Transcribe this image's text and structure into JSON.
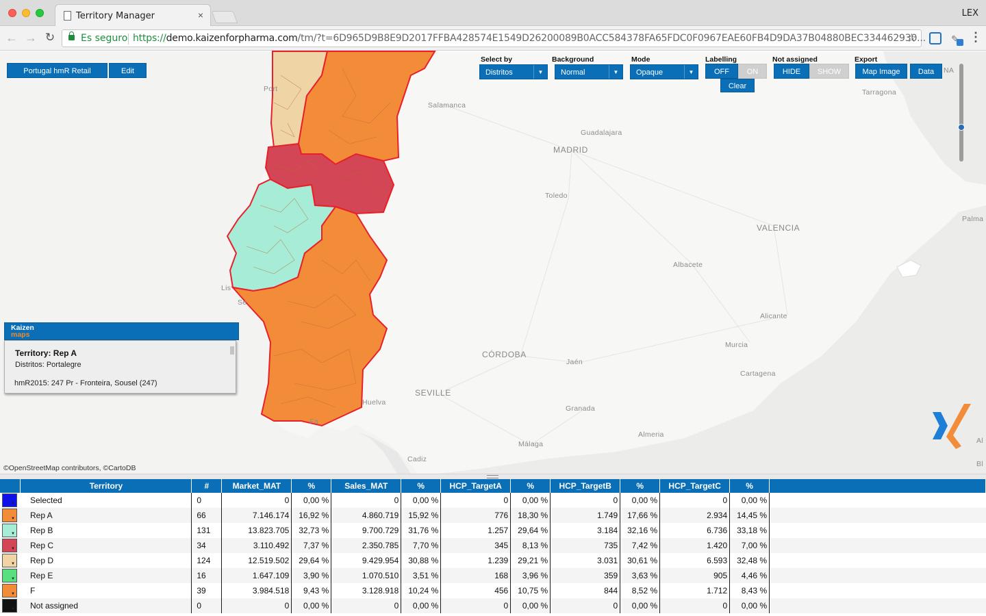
{
  "browser": {
    "tab_title": "Territory Manager",
    "tab_close": "×",
    "profile": "LEX",
    "secure_label": "Es seguro",
    "url_scheme": "https://",
    "url_host": "demo.kaizenforpharma.com",
    "url_path": "/tm/?t=6D965D9B8E9D2017FFBA428574E1549D26200089B0ACC584378FA65FDC0F0967EAE60FB4D9DA37B04880BEC334462930...",
    "icons": [
      "back-arrow-icon",
      "forward-arrow-icon",
      "reload-icon",
      "lock-icon",
      "star-icon",
      "extension-icon",
      "menu-icon"
    ]
  },
  "map_controls": {
    "territory_button": "Portugal hmR Retail",
    "edit_button": "Edit",
    "select_by": {
      "label": "Select by",
      "value": "Distritos"
    },
    "background": {
      "label": "Background",
      "value": "Normal"
    },
    "mode": {
      "label": "Mode",
      "value": "Opaque"
    },
    "labelling": {
      "label": "Labelling",
      "off": "OFF",
      "on": "ON",
      "active": "OFF"
    },
    "clear_button": "Clear",
    "not_assigned": {
      "label": "Not assigned",
      "hide": "HIDE",
      "show": "SHOW",
      "active": "HIDE"
    },
    "export": {
      "label": "Export",
      "map_image": "Map Image",
      "data": "Data"
    },
    "zoom_level": 0.66
  },
  "map": {
    "attribution": "©OpenStreetMap contributors, ©CartoDB",
    "cities": [
      "Salamanca",
      "Guadalajara",
      "MADRID",
      "Toledo",
      "VALENCIA",
      "Albacete",
      "Alicante",
      "Murcia",
      "Cartagena",
      "CÓRDOBA",
      "Jaén",
      "SEVILLE",
      "Huelva",
      "Granada",
      "Almeria",
      "Málaga",
      "Cadiz",
      "Tarragona",
      "Palma",
      "Port",
      "Lis",
      "Se",
      "Fa",
      "NA",
      "Al",
      "Bl"
    ]
  },
  "info_panel": {
    "logo_top": "Kaizen",
    "logo_bottom": "maps",
    "title": "Territory: Rep A",
    "subtitle": "Distritos: Portalegre",
    "detail": "hmR2015: 247 Pr - Fronteira, Sousel (247)"
  },
  "table": {
    "headers": [
      "Territory",
      "#",
      "Market_MAT",
      "%",
      "Sales_MAT",
      "%",
      "HCP_TargetA",
      "%",
      "HCP_TargetB",
      "%",
      "HCP_TargetC",
      "%"
    ],
    "rows": [
      {
        "color": "#1010e8",
        "name": "Selected",
        "count": "0",
        "market": "0",
        "market_pct": "0,00 %",
        "sales": "0",
        "sales_pct": "0,00 %",
        "ta": "0",
        "ta_pct": "0,00 %",
        "tb": "0",
        "tb_pct": "0,00 %",
        "tc": "0",
        "tc_pct": "0,00 %"
      },
      {
        "color": "#f28c38",
        "name": "Rep A",
        "count": "66",
        "market": "7.146.174",
        "market_pct": "16,92 %",
        "sales": "4.860.719",
        "sales_pct": "15,92 %",
        "ta": "776",
        "ta_pct": "18,30 %",
        "tb": "1.749",
        "tb_pct": "17,66 %",
        "tc": "2.934",
        "tc_pct": "14,45 %"
      },
      {
        "color": "#a7ecd6",
        "name": "Rep B",
        "count": "131",
        "market": "13.823.705",
        "market_pct": "32,73 %",
        "sales": "9.700.729",
        "sales_pct": "31,76 %",
        "ta": "1.257",
        "ta_pct": "29,64 %",
        "tb": "3.184",
        "tb_pct": "32,16 %",
        "tc": "6.736",
        "tc_pct": "33,18 %"
      },
      {
        "color": "#d24655",
        "name": "Rep C",
        "count": "34",
        "market": "3.110.492",
        "market_pct": "7,37 %",
        "sales": "2.350.785",
        "sales_pct": "7,70 %",
        "ta": "345",
        "ta_pct": "8,13 %",
        "tb": "735",
        "tb_pct": "7,42 %",
        "tc": "1.420",
        "tc_pct": "7,00 %"
      },
      {
        "color": "#efd4a6",
        "name": "Rep D",
        "count": "124",
        "market": "12.519.502",
        "market_pct": "29,64 %",
        "sales": "9.429.954",
        "sales_pct": "30,88 %",
        "ta": "1.239",
        "ta_pct": "29,21 %",
        "tb": "3.031",
        "tb_pct": "30,61 %",
        "tc": "6.593",
        "tc_pct": "32,48 %"
      },
      {
        "color": "#58e07e",
        "name": "Rep E",
        "count": "16",
        "market": "1.647.109",
        "market_pct": "3,90 %",
        "sales": "1.070.510",
        "sales_pct": "3,51 %",
        "ta": "168",
        "ta_pct": "3,96 %",
        "tb": "359",
        "tb_pct": "3,63 %",
        "tc": "905",
        "tc_pct": "4,46 %"
      },
      {
        "color": "#f28c38",
        "name": "F",
        "count": "39",
        "market": "3.984.518",
        "market_pct": "9,43 %",
        "sales": "3.128.918",
        "sales_pct": "10,24 %",
        "ta": "456",
        "ta_pct": "10,75 %",
        "tb": "844",
        "tb_pct": "8,52 %",
        "tc": "1.712",
        "tc_pct": "8,43 %"
      },
      {
        "color": "#111111",
        "name": "Not assigned",
        "count": "0",
        "market": "0",
        "market_pct": "0,00 %",
        "sales": "0",
        "sales_pct": "0,00 %",
        "ta": "0",
        "ta_pct": "0,00 %",
        "tb": "0",
        "tb_pct": "0,00 %",
        "tc": "0",
        "tc_pct": "0,00 %"
      }
    ]
  },
  "colors": {
    "accent": "#0a6fb7",
    "rep_a": "#f28c38",
    "rep_b": "#a7ecd6",
    "rep_c": "#d24655",
    "rep_d": "#efd4a6",
    "border": "#e8202a"
  }
}
